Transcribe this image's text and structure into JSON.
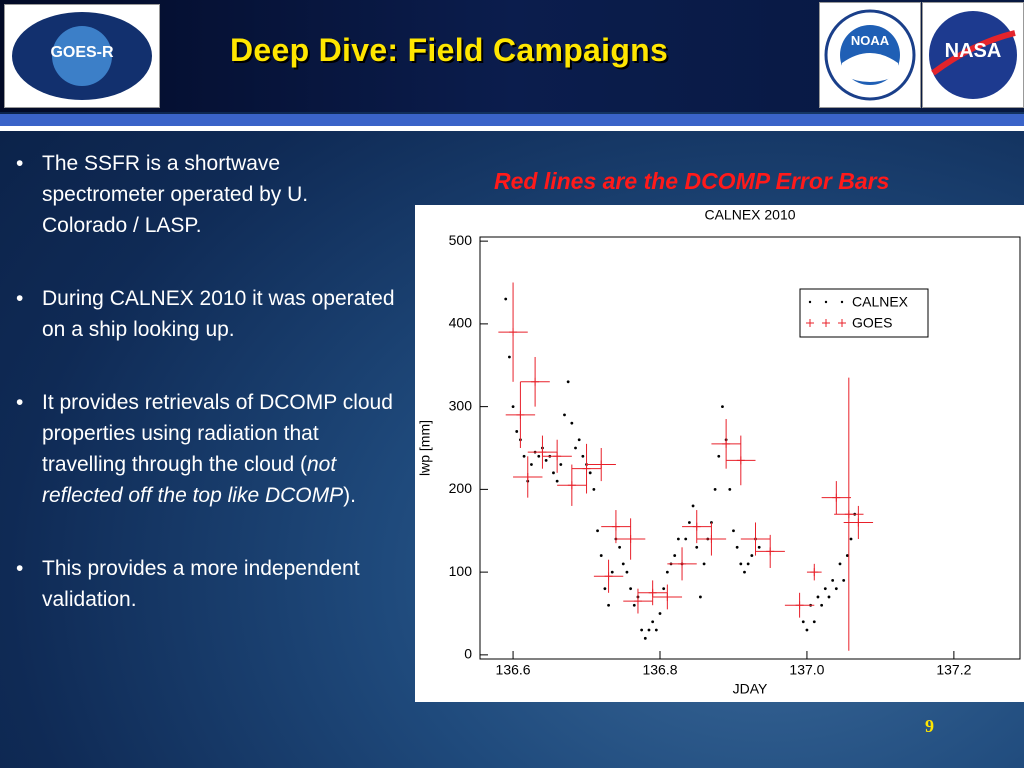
{
  "slide": {
    "title": "Deep Dive: Field Campaigns",
    "logos": [
      "GOES-R",
      "NOAA",
      "NASA"
    ],
    "bullets": [
      [
        {
          "text": "The SSFR is a shortwave spectrometer operated by U. Colorado / LASP."
        }
      ],
      [
        {
          "text": "During CALNEX 2010 it was operated on a ship looking up."
        }
      ],
      [
        {
          "text": "It provides retrievals of DCOMP cloud properties using radiation that travelling through the cloud ("
        },
        {
          "text": "not reflected off the top like DCOMP",
          "italic": true
        },
        {
          "text": ")."
        }
      ],
      [
        {
          "text": "This provides a more independent validation."
        }
      ]
    ],
    "annotation": "Red lines are the DCOMP Error Bars",
    "page_number": "9"
  },
  "chart_data": {
    "type": "scatter",
    "title": "CALNEX 2010",
    "x_label": "JDAY",
    "y_label": "lwp [mm]",
    "xlim": [
      136.555,
      137.29
    ],
    "ylim": [
      -5,
      505
    ],
    "xticks": [
      136.6,
      136.8,
      {
        "value": 137,
        "label": "137.0"
      },
      137.2
    ],
    "yticks": [
      0,
      100,
      200,
      300,
      400,
      500
    ],
    "legend": "upper right",
    "series": [
      {
        "name": "CALNEX",
        "color": "#000000",
        "x": [
          136.59,
          136.595,
          136.6,
          136.605,
          136.61,
          136.615,
          136.62,
          136.625,
          136.63,
          136.635,
          136.64,
          136.645,
          136.65,
          136.655,
          136.66,
          136.665,
          136.67,
          136.675,
          136.68,
          136.685,
          136.69,
          136.695,
          136.7,
          136.705,
          136.71,
          136.715,
          136.72,
          136.725,
          136.73,
          136.735,
          136.74,
          136.745,
          136.75,
          136.755,
          136.76,
          136.765,
          136.77,
          136.775,
          136.78,
          136.785,
          136.79,
          136.795,
          136.8,
          136.805,
          136.81,
          136.815,
          136.82,
          136.825,
          136.83,
          136.835,
          136.84,
          136.845,
          136.85,
          136.855,
          136.86,
          136.865,
          136.87,
          136.875,
          136.88,
          136.885,
          136.89,
          136.895,
          136.9,
          136.905,
          136.91,
          136.915,
          136.92,
          136.925,
          136.93,
          136.935,
          136.995,
          137,
          137.005,
          137.01,
          137.015,
          137.02,
          137.025,
          137.03,
          137.035,
          137.04,
          137.045,
          137.05,
          137.055,
          137.06,
          137.065
        ],
        "values": [
          430,
          360,
          300,
          270,
          260,
          240,
          210,
          230,
          245,
          240,
          250,
          235,
          240,
          220,
          210,
          230,
          290,
          330,
          280,
          250,
          260,
          240,
          230,
          220,
          200,
          150,
          120,
          80,
          60,
          100,
          140,
          130,
          110,
          100,
          80,
          60,
          70,
          30,
          20,
          30,
          40,
          30,
          50,
          80,
          100,
          110,
          120,
          140,
          110,
          140,
          160,
          180,
          130,
          70,
          110,
          140,
          160,
          200,
          240,
          300,
          260,
          200,
          150,
          130,
          110,
          100,
          110,
          120,
          140,
          130,
          40,
          30,
          60,
          40,
          70,
          60,
          80,
          70,
          90,
          80,
          110,
          90,
          120,
          140,
          170
        ]
      },
      {
        "name": "GOES",
        "color": "#e8202a",
        "x": [
          136.6,
          136.61,
          136.63,
          136.62,
          136.64,
          136.66,
          136.68,
          136.7,
          136.72,
          136.74,
          136.76,
          136.73,
          136.77,
          136.79,
          136.81,
          136.83,
          136.85,
          136.87,
          136.89,
          136.91,
          136.93,
          136.95,
          136.99,
          137.01,
          137.04,
          137.057,
          137.07
        ],
        "values": [
          390,
          290,
          330,
          215,
          245,
          240,
          205,
          225,
          230,
          155,
          140,
          95,
          65,
          75,
          70,
          110,
          155,
          140,
          255,
          235,
          140,
          125,
          60,
          100,
          190,
          170,
          160
        ],
        "xerr": [
          0.02,
          0.02,
          0.02,
          0.02,
          0.02,
          0.02,
          0.02,
          0.02,
          0.02,
          0.02,
          0.02,
          0.02,
          0.02,
          0.02,
          0.02,
          0.02,
          0.02,
          0.02,
          0.02,
          0.02,
          0.02,
          0.02,
          0.02,
          0.01,
          0.02,
          0.02,
          0.02
        ],
        "yerr": [
          60,
          40,
          30,
          25,
          20,
          20,
          25,
          30,
          20,
          20,
          25,
          20,
          15,
          15,
          15,
          20,
          20,
          20,
          30,
          30,
          20,
          20,
          15,
          10,
          20,
          165,
          20
        ]
      }
    ]
  }
}
